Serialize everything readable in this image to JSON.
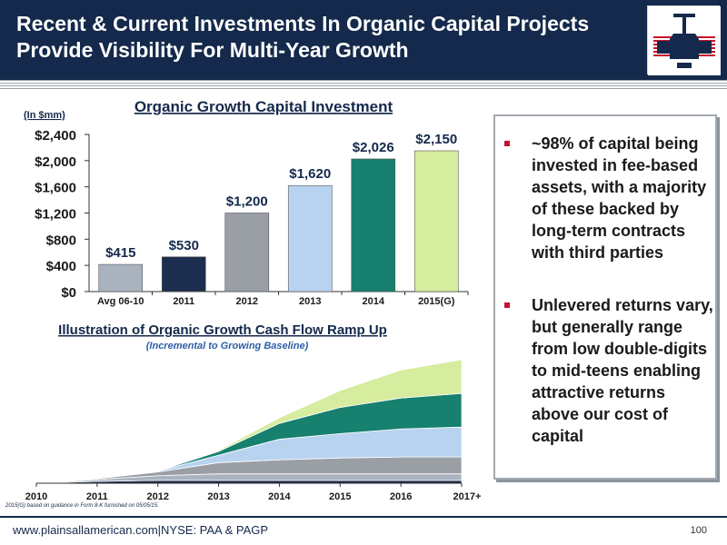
{
  "header": {
    "title": "Recent & Current Investments In Organic Capital Projects Provide Visibility For Multi-Year Growth"
  },
  "chart_data": [
    {
      "type": "bar",
      "title": "Organic Growth Capital Investment",
      "unit_label": "(In $mm)",
      "categories": [
        "Avg 06-10",
        "2011",
        "2012",
        "2013",
        "2014",
        "2015(G)"
      ],
      "values": [
        415,
        530,
        1200,
        1620,
        2026,
        2150
      ],
      "data_labels": [
        "$415",
        "$530",
        "$1,200",
        "$1,620",
        "$2,026",
        "$2,150"
      ],
      "y_ticks": [
        "$0",
        "$400",
        "$800",
        "$1,200",
        "$1,600",
        "$2,000",
        "$2,400"
      ],
      "ylim": [
        0,
        2400
      ],
      "colors": [
        "#a9b3bf",
        "#1c2e4f",
        "#9a9fa5",
        "#b8d3f0",
        "#17806f",
        "#d6ec9f"
      ]
    },
    {
      "type": "area",
      "title": "Illustration of Organic Growth Cash Flow Ramp Up",
      "subtitle": "(Incremental to Growing Baseline)",
      "x": [
        "2010",
        "2011",
        "2012",
        "2013",
        "2014",
        "2015",
        "2016",
        "2017+"
      ],
      "series": [
        {
          "values": [
            0,
            2,
            3,
            3,
            3,
            3,
            3,
            3
          ]
        },
        {
          "values": [
            0,
            2,
            5,
            7,
            7,
            7,
            7,
            7
          ]
        },
        {
          "values": [
            0,
            1,
            4,
            12,
            15,
            17,
            18,
            18
          ]
        },
        {
          "values": [
            0,
            0,
            1,
            8,
            22,
            26,
            30,
            32
          ]
        },
        {
          "values": [
            0,
            0,
            0,
            4,
            17,
            28,
            33,
            36
          ]
        },
        {
          "values": [
            0,
            0,
            0,
            1,
            6,
            18,
            30,
            36
          ]
        }
      ],
      "ylim": [
        0,
        165
      ],
      "colors": [
        "#1c2e4f",
        "#a9b3bf",
        "#9a9fa5",
        "#b8d3f0",
        "#17806f",
        "#d6ec9f"
      ]
    }
  ],
  "bullets": [
    "~98% of capital being invested in fee-based assets, with a majority of these backed by long-term contracts with third parties",
    "Unlevered returns vary, but generally range from low double-digits to mid-teens enabling attractive returns above our cost of capital"
  ],
  "footnote": "2015(G) based on guidance in Form 8-K furnished on 05/05/15.",
  "footer": {
    "site": "www.plainsallamerican.com|NYSE: PAA & PAGP",
    "page": "100"
  }
}
